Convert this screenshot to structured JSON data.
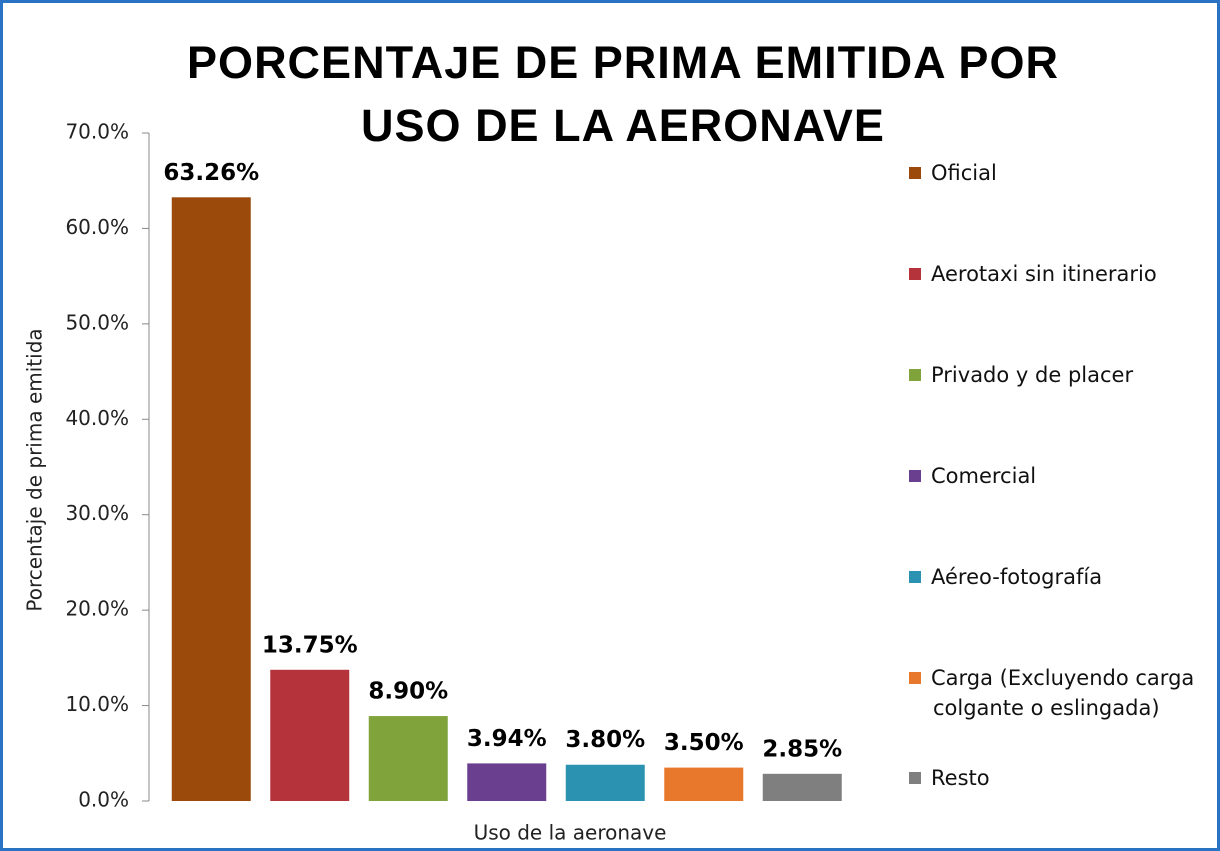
{
  "chart_data": {
    "type": "bar",
    "title": "PORCENTAJE DE PRIMA EMITIDA POR USO DE LA AERONAVE",
    "y_axis_label": "Porcentaje de prima emitida",
    "x_axis_label": "Uso de la aeronave",
    "categories": [
      "Oficial",
      "Aerotaxi sin itinerario",
      "Privado y de placer",
      "Comercial",
      "Aéreo-fotografía",
      "Carga (Excluyendo carga colgante o eslingada)",
      "Resto"
    ],
    "values": [
      63.26,
      13.75,
      8.9,
      3.94,
      3.8,
      3.5,
      2.85
    ],
    "value_labels": [
      "63.26%",
      "13.75%",
      "8.90%",
      "3.94%",
      "3.80%",
      "3.50%",
      "2.85%"
    ],
    "colors": [
      "#9b4a0b",
      "#b5333b",
      "#80a33b",
      "#6b3f8f",
      "#2b93b1",
      "#e8782b",
      "#7f7f7f"
    ],
    "ylim": [
      0,
      70
    ],
    "yticks": [
      {
        "value": 0,
        "label": "0.0%"
      },
      {
        "value": 10,
        "label": "10.0%"
      },
      {
        "value": 20,
        "label": "20.0%"
      },
      {
        "value": 30,
        "label": "30.0%"
      },
      {
        "value": 40,
        "label": "40.0%"
      },
      {
        "value": 50,
        "label": "50.0%"
      },
      {
        "value": 60,
        "label": "60.0%"
      },
      {
        "value": 70,
        "label": "70.0%"
      }
    ],
    "legend": "right"
  }
}
